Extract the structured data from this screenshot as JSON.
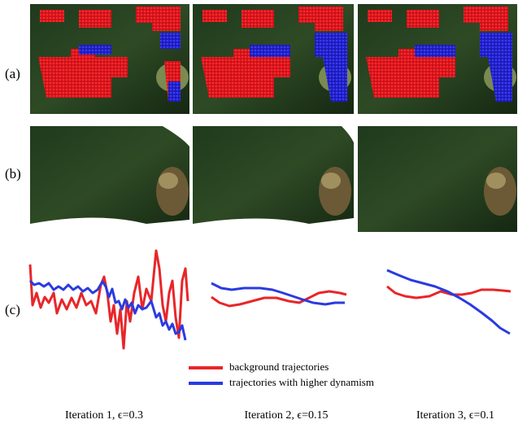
{
  "row_labels": [
    "(a)",
    "(b)",
    "(c)"
  ],
  "legend": [
    {
      "label": "background trajectories",
      "color": "#e8262a"
    },
    {
      "label": "trajectories with higher dynamism",
      "color": "#2a3be0"
    }
  ],
  "iterations": [
    "Iteration 1, ϵ=0.3",
    "Iteration 2, ϵ=0.15",
    "Iteration 3, ϵ=0.1"
  ]
}
